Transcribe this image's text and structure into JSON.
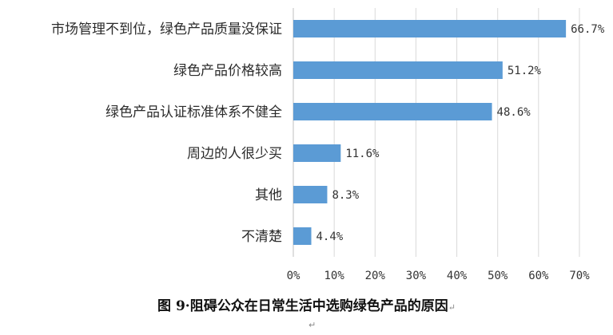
{
  "chart_data": {
    "type": "bar",
    "orientation": "horizontal",
    "categories": [
      "市场管理不到位，绿色产品质量没保证",
      "绿色产品价格较高",
      "绿色产品认证标准体系不健全",
      "周边的人很少买",
      "其他",
      "不清楚"
    ],
    "values": [
      66.7,
      51.2,
      48.6,
      11.6,
      8.3,
      4.4
    ],
    "value_labels": [
      "66.7%",
      "51.2%",
      "48.6%",
      "11.6%",
      "8.3%",
      "4.4%"
    ],
    "xlim": [
      0,
      70
    ],
    "xticks": [
      "0%",
      "10%",
      "20%",
      "30%",
      "40%",
      "50%",
      "60%",
      "70%"
    ],
    "grid": true,
    "bar_color": "#5b9bd5"
  },
  "caption": "图 9·阻碍公众在日常生活中选购绿色产品的原因",
  "caption_mark": "↵",
  "footer_mark": "↵"
}
